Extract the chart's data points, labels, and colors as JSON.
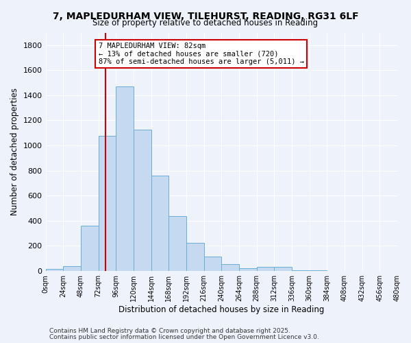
{
  "title": "7, MAPLEDURHAM VIEW, TILEHURST, READING, RG31 6LF",
  "subtitle": "Size of property relative to detached houses in Reading",
  "xlabel": "Distribution of detached houses by size in Reading",
  "ylabel": "Number of detached properties",
  "bar_color": "#c5d9f1",
  "bar_edge_color": "#6baed6",
  "background_color": "#eef2fb",
  "grid_color": "#ffffff",
  "bin_edges": [
    0,
    24,
    48,
    72,
    96,
    120,
    144,
    168,
    192,
    216,
    240,
    264,
    288,
    312,
    336,
    360,
    384,
    408,
    432,
    456,
    480
  ],
  "bin_counts": [
    15,
    35,
    360,
    1075,
    1470,
    1125,
    760,
    435,
    225,
    115,
    55,
    20,
    30,
    30,
    5,
    5,
    0,
    0,
    0,
    0
  ],
  "property_size": 82,
  "annotation_line1": "7 MAPLEDURHAM VIEW: 82sqm",
  "annotation_line2": "← 13% of detached houses are smaller (720)",
  "annotation_line3": "87% of semi-detached houses are larger (5,011) →",
  "annotation_box_color": "#ffffff",
  "annotation_box_edge": "#cc0000",
  "vline_color": "#cc0000",
  "ylim": [
    0,
    1900
  ],
  "yticks": [
    0,
    200,
    400,
    600,
    800,
    1000,
    1200,
    1400,
    1600,
    1800
  ],
  "footnote1": "Contains HM Land Registry data © Crown copyright and database right 2025.",
  "footnote2": "Contains public sector information licensed under the Open Government Licence v3.0."
}
